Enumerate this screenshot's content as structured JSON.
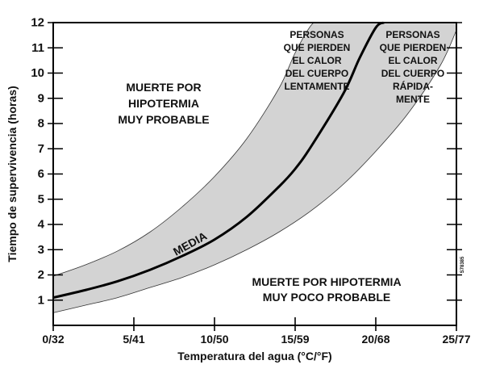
{
  "chart_data": {
    "type": "area",
    "title": "",
    "xlabel": "Temperatura del agua (°C/°F)",
    "ylabel": "Tiempo de supervivencia (horas)",
    "xlim": [
      0,
      25
    ],
    "ylim": [
      0,
      12
    ],
    "x_ticks": [
      {
        "value": 0,
        "label": "0/32"
      },
      {
        "value": 5,
        "label": "5/41"
      },
      {
        "value": 10,
        "label": "10/50"
      },
      {
        "value": 15,
        "label": "15/59"
      },
      {
        "value": 20,
        "label": "20/68"
      },
      {
        "value": 25,
        "label": "25/77"
      }
    ],
    "y_ticks": [
      1,
      2,
      3,
      4,
      5,
      6,
      7,
      8,
      9,
      10,
      11,
      12
    ],
    "grid": false,
    "band_color": "#d3d3d3",
    "series": [
      {
        "name": "MEDIA",
        "x": [
          0,
          2,
          4,
          6,
          8,
          10,
          12,
          14,
          15,
          16,
          18,
          19,
          20,
          20.5
        ],
        "y": [
          1.1,
          1.4,
          1.75,
          2.2,
          2.75,
          3.4,
          4.3,
          5.5,
          6.2,
          7.1,
          9.2,
          10.6,
          11.8,
          12
        ]
      },
      {
        "name": "",
        "role": "band-upper",
        "x": [
          0,
          2,
          4,
          6,
          8,
          10,
          12,
          14,
          15,
          16,
          16.5
        ],
        "y": [
          1.95,
          2.4,
          2.95,
          3.7,
          4.7,
          5.9,
          7.4,
          9.4,
          10.8,
          11.9,
          12
        ]
      },
      {
        "name": "",
        "role": "band-lower",
        "x": [
          0,
          2,
          4,
          6,
          8,
          10,
          12,
          14,
          16,
          18,
          20,
          22,
          24,
          25
        ],
        "y": [
          0.5,
          0.8,
          1.1,
          1.5,
          1.9,
          2.4,
          3.0,
          3.7,
          4.55,
          5.6,
          6.9,
          8.4,
          10.3,
          11.7
        ]
      }
    ],
    "annotations": [
      {
        "id": "death-likely",
        "lines": [
          "MUERTE POR",
          "HIPOTERMIA",
          "MUY PROBABLE"
        ]
      },
      {
        "id": "slow-loss",
        "lines": [
          "PERSONAS",
          "QUE PIERDEN",
          "EL CALOR",
          "DEL CUERPO",
          "LENTAMENTE"
        ]
      },
      {
        "id": "fast-loss",
        "lines": [
          "PERSONAS",
          "QUE PIERDEN",
          "EL CALOR",
          "DEL CUERPO",
          "RÁPIDA-",
          "MENTE"
        ]
      },
      {
        "id": "media-label",
        "lines": [
          "MEDIA"
        ]
      },
      {
        "id": "death-unlikely",
        "lines": [
          "MUERTE POR HIPOTERMIA",
          "MUY POCO PROBABLE"
        ]
      },
      {
        "id": "figure-code",
        "lines": [
          "S78385"
        ]
      }
    ]
  }
}
